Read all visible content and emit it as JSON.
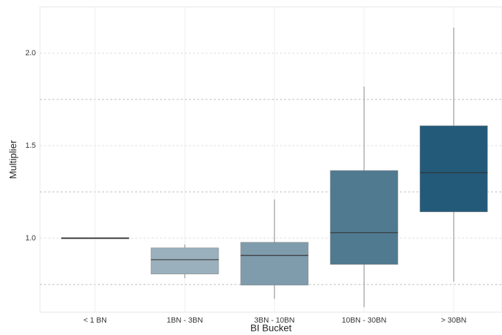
{
  "chart_data": {
    "type": "box",
    "xlabel": "BI Bucket",
    "ylabel": "Multiplier",
    "categories": [
      "< 1 BN",
      "1BN - 3BN",
      "3BN - 10BN",
      "10BN - 30BN",
      "> 30BN"
    ],
    "min": [
      1.0,
      0.784,
      0.672,
      0.627,
      0.765
    ],
    "q1": [
      1.0,
      0.81,
      0.75,
      0.862,
      1.146
    ],
    "median": [
      1.0,
      0.884,
      0.907,
      1.03,
      1.354
    ],
    "q3": [
      1.0,
      0.944,
      0.974,
      1.362,
      1.604
    ],
    "max": [
      1.0,
      0.966,
      1.209,
      1.82,
      2.138
    ],
    "colors": [
      "#9a9a9a",
      "#9ab0bc",
      "#7f9cac",
      "#4f7a90",
      "#235a7a"
    ],
    "ylim": [
      0.6,
      2.25
    ],
    "yticks": [
      {
        "value": 1,
        "label": "1.0"
      },
      {
        "value": 1.5,
        "label": "1.5"
      },
      {
        "value": 2,
        "label": "2.0"
      }
    ],
    "yminor": [
      0.75,
      1.25,
      1.75
    ],
    "grid": true
  }
}
